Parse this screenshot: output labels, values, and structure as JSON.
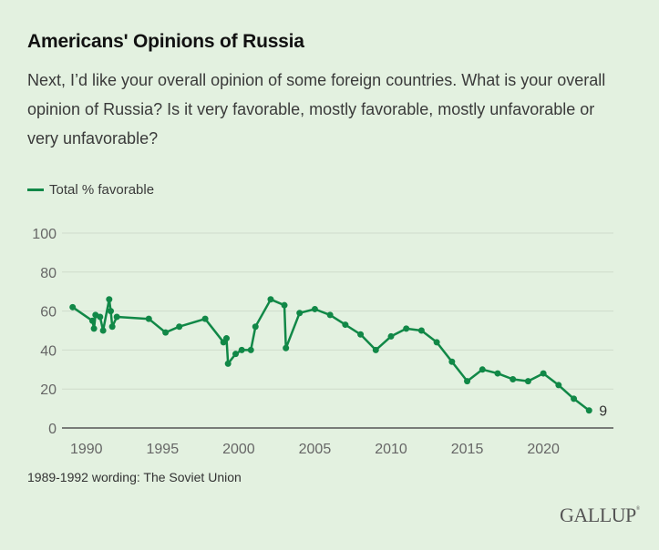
{
  "header": {
    "title": "Americans' Opinions of Russia",
    "question": "Next, I’d like your overall opinion of some foreign countries. What is your overall opinion of Russia? Is it very favorable, mostly favorable, mostly unfavorable or very unfavorable?"
  },
  "footer": {
    "note": "1989-1992 wording: The Soviet Union",
    "logo": "GALLUP",
    "logo_mark": "®"
  },
  "colors": {
    "background": "#e3f1e0",
    "series": "#118847",
    "gridline": "#cfdccb",
    "axis": "#555555"
  },
  "chart_data": {
    "type": "line",
    "title": "Americans' Opinions of Russia",
    "xlabel": "",
    "ylabel": "",
    "xlim": [
      1988.4,
      2024.6
    ],
    "ylim": [
      0,
      100
    ],
    "x_ticks": [
      1990,
      1995,
      2000,
      2005,
      2010,
      2015,
      2020
    ],
    "x_tick_labels": [
      "1990",
      "1995",
      "2000",
      "2005",
      "2010",
      "2015",
      "2020"
    ],
    "y_ticks": [
      0,
      20,
      40,
      60,
      80,
      100
    ],
    "y_tick_labels": [
      "0",
      "20",
      "40",
      "60",
      "80",
      "100"
    ],
    "grid": "horizontal",
    "legend_position": "top-left",
    "end_label": "9",
    "series": [
      {
        "name": "Total % favorable",
        "x": [
          1989.1,
          1990.4,
          1990.5,
          1990.6,
          1990.9,
          1991.1,
          1991.5,
          1991.6,
          1991.7,
          1992.0,
          1994.1,
          1995.2,
          1996.1,
          1997.8,
          1999.0,
          1999.2,
          1999.3,
          1999.8,
          2000.2,
          2000.8,
          2001.1,
          2002.1,
          2003.0,
          2003.1,
          2004.0,
          2005.0,
          2006.0,
          2007.0,
          2008.0,
          2009.0,
          2010.0,
          2011.0,
          2012.0,
          2013.0,
          2014.0,
          2015.0,
          2016.0,
          2017.0,
          2018.0,
          2019.0,
          2020.0,
          2021.0,
          2022.0,
          2023.0
        ],
        "values": [
          62,
          55,
          51,
          58,
          57,
          50,
          66,
          60,
          52,
          57,
          56,
          49,
          52,
          56,
          44,
          46,
          33,
          38,
          40,
          40,
          52,
          66,
          63,
          41,
          59,
          61,
          58,
          53,
          48,
          40,
          47,
          51,
          50,
          44,
          34,
          24,
          30,
          28,
          25,
          24,
          28,
          22,
          15,
          9
        ]
      }
    ]
  }
}
